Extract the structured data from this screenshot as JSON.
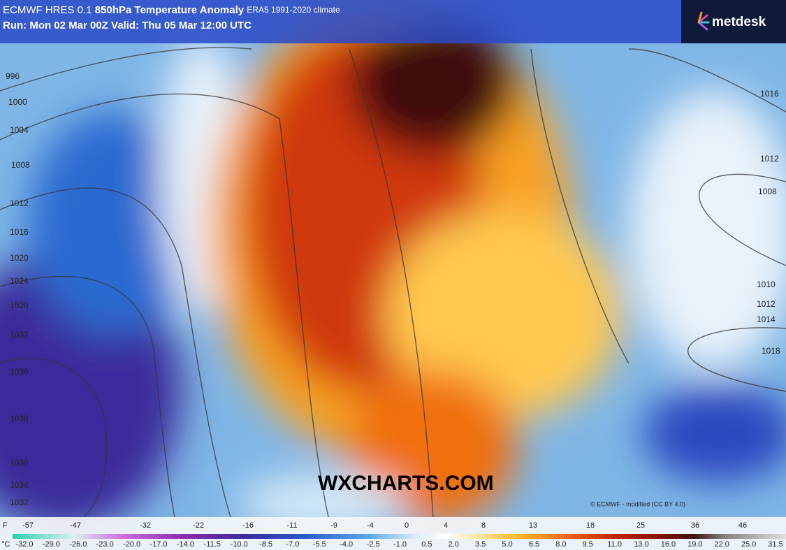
{
  "header": {
    "model": "ECMWF HRES 0.1",
    "parameter": "850hPa Temperature Anomaly",
    "climate": "ERA5 1991-2020 climate",
    "run": "Run: Mon 02 Mar 00Z Valid: Thu 05 Mar 12:00 UTC"
  },
  "logo": "metdesk",
  "watermark": "WXCHARTS.COM",
  "credit": "© ECMWF - modified (CC BY 4.0)",
  "isobar_labels": [
    "996",
    "1000",
    "1004",
    "1008",
    "1012",
    "1016",
    "1020",
    "1024",
    "1028",
    "1032",
    "1036",
    "1038",
    "1036",
    "1034",
    "1032",
    "1016",
    "1012",
    "1008",
    "1010",
    "1012",
    "1014",
    "1018"
  ],
  "colorbar": {
    "fahrenheit_unit": "F",
    "fahrenheit_labels": [
      "-57",
      "-47",
      "-32",
      "-22",
      "-16",
      "-11",
      "-9",
      "-4",
      "0",
      "4",
      "8",
      "13",
      "18",
      "25",
      "36",
      "46"
    ],
    "celsius_unit": "°C",
    "celsius_labels": [
      "-32.0",
      "-29.0",
      "-26.0",
      "-23.0",
      "-20.0",
      "-17.0",
      "-14.0",
      "-11.5",
      "-10.0",
      "-8.5",
      "-7.0",
      "-5.5",
      "-4.0",
      "-2.5",
      "-1.0",
      "0.5",
      "2.0",
      "3.5",
      "5.0",
      "6.5",
      "8.0",
      "9.5",
      "11.0",
      "13.0",
      "16.0",
      "19.0",
      "22.0",
      "25.0",
      "31.5"
    ]
  }
}
